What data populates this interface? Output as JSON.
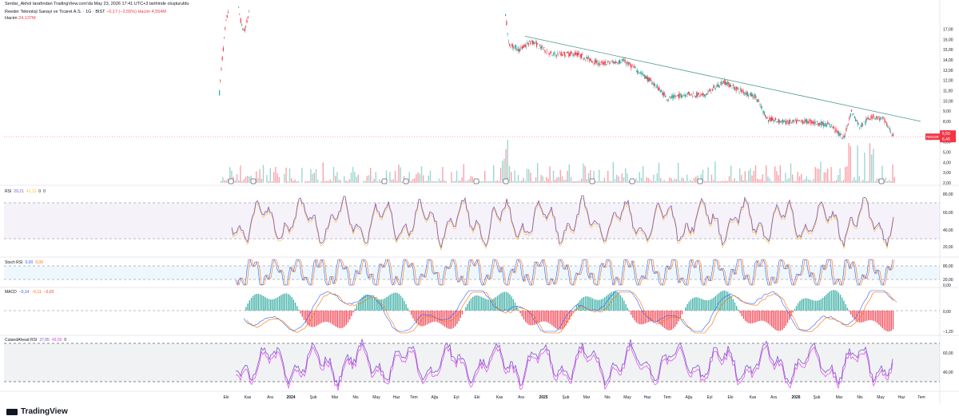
{
  "header": {
    "published": "Serdar_Akhol tarafından TradingView.com'da May 23, 2026 17:41 UTC+3 tarihinde oluşturuldu",
    "symbol_line": "Reeder Teknoloji Sanayi ve Ticaret A.S. · 1G · BIST",
    "symbol_change": "−0,17 (−2,55%)",
    "symbol_volume": "Hacim 4,554M",
    "hacim_label": "Hacim",
    "hacim_value": "24,137M"
  },
  "price_axis": [
    "17,00",
    "16,00",
    "15,00",
    "14,00",
    "13,00",
    "12,00",
    "11,00",
    "10,00",
    "9,00",
    "8,00",
    "7,00",
    "6,00",
    "5,00",
    "4,00",
    "3,00",
    "2,00"
  ],
  "price_tag": {
    "symbol": "REEDR",
    "value": "6,50",
    "value2": "6,49"
  },
  "time_axis": [
    "Eki",
    "Kas",
    "Ara",
    "2024",
    "Şub",
    "Mar",
    "Nis",
    "May",
    "Haz",
    "Tem",
    "Ağu",
    "Eyl",
    "Eki",
    "Kas",
    "Ara",
    "2025",
    "Şub",
    "Mar",
    "Nis",
    "May",
    "Haz",
    "Tem",
    "Ağu",
    "Eyl",
    "Eki",
    "Kas",
    "Ara",
    "2026",
    "Şub",
    "Mar",
    "Nis",
    "May",
    "Haz",
    "Tem"
  ],
  "panes": {
    "rsi": {
      "name": "RSI",
      "v1": "29,21",
      "v2": "41,13",
      "v3": "0",
      "v4": "0",
      "axis": [
        "80,00",
        "60,00",
        "40,00",
        "20,00"
      ]
    },
    "stoch": {
      "name": "Stoch RSI",
      "v1": "0,00",
      "v2": "0,00",
      "axis": [
        "80,00",
        "20,00",
        "0,00"
      ]
    },
    "macd": {
      "name": "MACD",
      "v1": "−0,14",
      "v2": "−0,11",
      "v3": "−0,03",
      "axis": [
        "0,00",
        "−1,20"
      ]
    },
    "cut": {
      "name": "CutandAhead RSI",
      "v1": "37,85",
      "v2": "49,09",
      "v3": "0",
      "axis": [
        "60,00",
        "40,00"
      ]
    }
  },
  "footer": {
    "brand": "TradingView"
  },
  "colors": {
    "up": "#26a69a",
    "down": "#f23645",
    "trend": "#4a9a8a",
    "rsi": "#7e57c2",
    "rsi_ma": "#fbc02d",
    "stoch_k": "#2962ff",
    "stoch_d": "#ff6d00"
  },
  "chart_data": [
    {
      "type": "line",
      "title": "",
      "series": [
        {
          "name": "REEDR",
          "x": [
            "2024-09",
            "2024-10",
            "2024-11",
            "2024-12",
            "2025-01",
            "2025-02",
            "2025-03",
            "2025-04",
            "2025-05",
            "2025-06",
            "2025-07",
            "2025-08",
            "2025-09",
            "2025-10",
            "2025-11",
            "2025-12",
            "2026-01",
            "2026-02",
            "2026-03",
            "2026-04",
            "2026-05"
          ],
          "values": [
            16.5,
            15.0,
            15.2,
            14.8,
            14.5,
            13.5,
            13.0,
            12.0,
            12.3,
            11.0,
            9.3,
            10.5,
            10.8,
            11.5,
            10.8,
            7.5,
            6.9,
            6.3,
            8.9,
            8.5,
            6.5
          ]
        }
      ],
      "ylim": [
        2,
        17.5
      ]
    },
    {
      "type": "line",
      "title": "",
      "series": [
        {
          "name": "RSI",
          "values": [
            70,
            58,
            62,
            45,
            52,
            85,
            40,
            48,
            35,
            42,
            50,
            38,
            44,
            55,
            32,
            28,
            45,
            60,
            50,
            42,
            55,
            48,
            40,
            58,
            62,
            45,
            35,
            25,
            38,
            50,
            70,
            55,
            62,
            48,
            29
          ]
        }
      ],
      "ylim": [
        0,
        100
      ]
    }
  ]
}
